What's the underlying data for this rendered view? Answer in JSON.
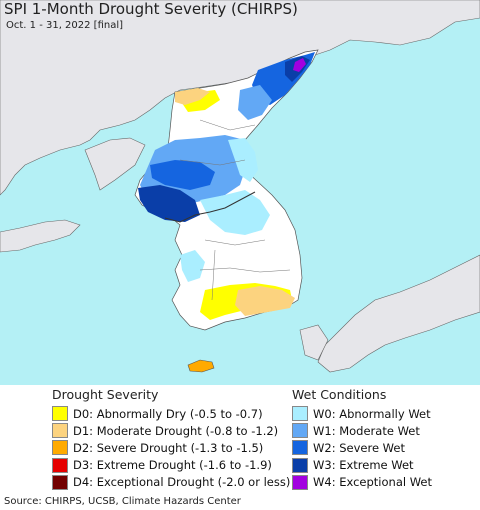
{
  "header": {
    "title": "SPI 1-Month Drought Severity (CHIRPS)",
    "subtitle": "Oct. 1 - 31, 2022 [final]"
  },
  "legend_drought": {
    "title": "Drought Severity",
    "items": [
      {
        "label": "D0: Abnormally Dry (-0.5 to -0.7)",
        "color": "#ffff00"
      },
      {
        "label": "D1: Moderate Drought (-0.8 to -1.2)",
        "color": "#fcd37f"
      },
      {
        "label": "D2: Severe Drought (-1.3 to -1.5)",
        "color": "#ffaa00"
      },
      {
        "label": "D3: Extreme Drought (-1.6 to -1.9)",
        "color": "#e60000"
      },
      {
        "label": "D4: Exceptional Drought (-2.0 or less)",
        "color": "#730000"
      }
    ]
  },
  "legend_wet": {
    "title": "Wet Conditions",
    "items": [
      {
        "label": "W0: Abnormally Wet",
        "color": "#aaeeff"
      },
      {
        "label": "W1: Moderate Wet",
        "color": "#62a8f5"
      },
      {
        "label": "W2: Severe Wet",
        "color": "#1565e0"
      },
      {
        "label": "W3: Extreme Wet",
        "color": "#0a3ea8"
      },
      {
        "label": "W4: Exceptional Wet",
        "color": "#a200e0"
      }
    ]
  },
  "map_colors": {
    "ocean": "#b4f0f5",
    "land_outside": "#e6e6ea",
    "land_normal": "#ffffff"
  },
  "footer": {
    "source": "Source: CHIRPS, UCSB, Climate Hazards Center"
  }
}
